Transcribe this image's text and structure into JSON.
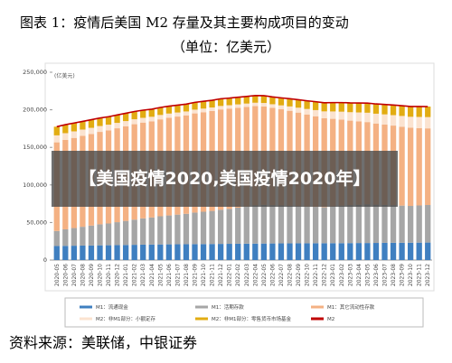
{
  "header": {
    "title": "图表 1：疫情后美国 M2 存量及其主要构成项目的变动",
    "subtitle": "（单位：亿美元）"
  },
  "chart_data": {
    "type": "stacked_bar_line",
    "y_unit": "(亿美元)",
    "categories": [
      "2020-05",
      "2020-06",
      "2020-07",
      "2020-08",
      "2020-09",
      "2020-10",
      "2020-11",
      "2020-12",
      "2021-01",
      "2021-02",
      "2021-03",
      "2021-04",
      "2021-05",
      "2021-06",
      "2021-07",
      "2021-08",
      "2021-09",
      "2021-10",
      "2021-11",
      "2021-12",
      "2022-01",
      "2022-02",
      "2022-03",
      "2022-04",
      "2022-05",
      "2022-06",
      "2022-07",
      "2022-08",
      "2022-09",
      "2022-10",
      "2022-11",
      "2022-12",
      "2023-01",
      "2023-02",
      "2023-03",
      "2023-04",
      "2023-05",
      "2023-06",
      "2023-07",
      "2023-08",
      "2023-09",
      "2023-10",
      "2023-11",
      "2023-12"
    ],
    "ylim": [
      0,
      250000
    ],
    "yticks": [
      {
        "value": 0,
        "label": "0"
      },
      {
        "value": 50000,
        "label": "50,000"
      },
      {
        "value": 100000,
        "label": "100,000"
      },
      {
        "value": 150000,
        "label": "150,000"
      },
      {
        "value": 200000,
        "label": "200,000"
      },
      {
        "value": 250000,
        "label": "250,000"
      }
    ],
    "series": [
      {
        "name": "M1：流通现金",
        "color": "#3f7fc0",
        "values": [
          18700,
          18900,
          19100,
          19300,
          19400,
          19600,
          19700,
          19900,
          20100,
          20300,
          20500,
          20700,
          20800,
          20900,
          21000,
          21100,
          21200,
          21300,
          21400,
          21500,
          21600,
          21700,
          21800,
          21900,
          22000,
          22100,
          22200,
          22200,
          22300,
          22300,
          22400,
          22400,
          22500,
          22500,
          22600,
          22700,
          22700,
          22800,
          22900,
          23000,
          23000,
          23100,
          23200,
          23300
        ]
      },
      {
        "name": "M1：活期存款",
        "color": "#a6a6a6",
        "values": [
          20000,
          22000,
          23500,
          25000,
          26500,
          28000,
          29000,
          30500,
          32000,
          33500,
          35000,
          36000,
          37500,
          38500,
          39500,
          40500,
          42000,
          43000,
          44000,
          45500,
          46500,
          48000,
          49500,
          51000,
          51500,
          51000,
          50500,
          50000,
          49500,
          49000,
          48500,
          48000,
          49000,
          50000,
          50500,
          51000,
          51500,
          51000,
          50500,
          50000,
          49500,
          49000,
          49500,
          50000
        ]
      },
      {
        "name": "M1：其它流动性存款",
        "color": "#f4b183",
        "values": [
          118000,
          119000,
          120000,
          121000,
          122000,
          123000,
          124000,
          125000,
          126000,
          127000,
          127500,
          128000,
          129000,
          130000,
          130500,
          131000,
          132000,
          132500,
          133000,
          133500,
          133500,
          133000,
          132500,
          132000,
          131000,
          129500,
          128000,
          126500,
          124500,
          122500,
          120500,
          118500,
          116500,
          114500,
          112500,
          111000,
          109500,
          108000,
          107000,
          106000,
          105000,
          104000,
          103000,
          102000
        ]
      },
      {
        "name": "M2：非M1部分：小额定存",
        "color": "#fbe3d0",
        "values": [
          9300,
          9000,
          8700,
          8400,
          8100,
          7800,
          7500,
          7200,
          6900,
          6600,
          6300,
          6000,
          5800,
          5600,
          5400,
          5200,
          5000,
          4800,
          4700,
          4600,
          4500,
          4500,
          4500,
          4500,
          4600,
          4800,
          5200,
          5800,
          6500,
          7300,
          8200,
          9000,
          9800,
          10500,
          11200,
          11800,
          12400,
          13000,
          13500,
          13900,
          14300,
          14600,
          14800,
          15000
        ]
      },
      {
        "name": "M2：非M1部分：零售货币市场基金",
        "color": "#e2ac12",
        "values": [
          11500,
          11300,
          11100,
          10900,
          10800,
          10700,
          10600,
          10500,
          10400,
          10300,
          10200,
          10100,
          10000,
          9900,
          9800,
          9800,
          9700,
          9700,
          9600,
          9600,
          9500,
          9500,
          9500,
          9600,
          9700,
          9800,
          10000,
          10300,
          10600,
          10900,
          11200,
          11500,
          11800,
          12100,
          12400,
          12600,
          12800,
          13000,
          13200,
          13400,
          13600,
          13700,
          13900,
          14000
        ]
      }
    ],
    "line": {
      "name": "M2",
      "color": "#c00000",
      "values": [
        177500,
        180200,
        182400,
        184600,
        186800,
        189100,
        190800,
        193100,
        195400,
        197700,
        199500,
        200800,
        203100,
        204900,
        206200,
        207600,
        209900,
        211300,
        212700,
        214700,
        215600,
        216700,
        217800,
        219000,
        218800,
        217200,
        215900,
        214800,
        213400,
        212000,
        210800,
        209400,
        209600,
        209600,
        209200,
        209100,
        208900,
        207800,
        207100,
        206300,
        205400,
        204400,
        204400,
        204300
      ]
    }
  },
  "overlay": {
    "text": "【美国疫情2020,美国疫情2020年】"
  },
  "footer": {
    "source": "资料来源：美联储，中银证券"
  }
}
